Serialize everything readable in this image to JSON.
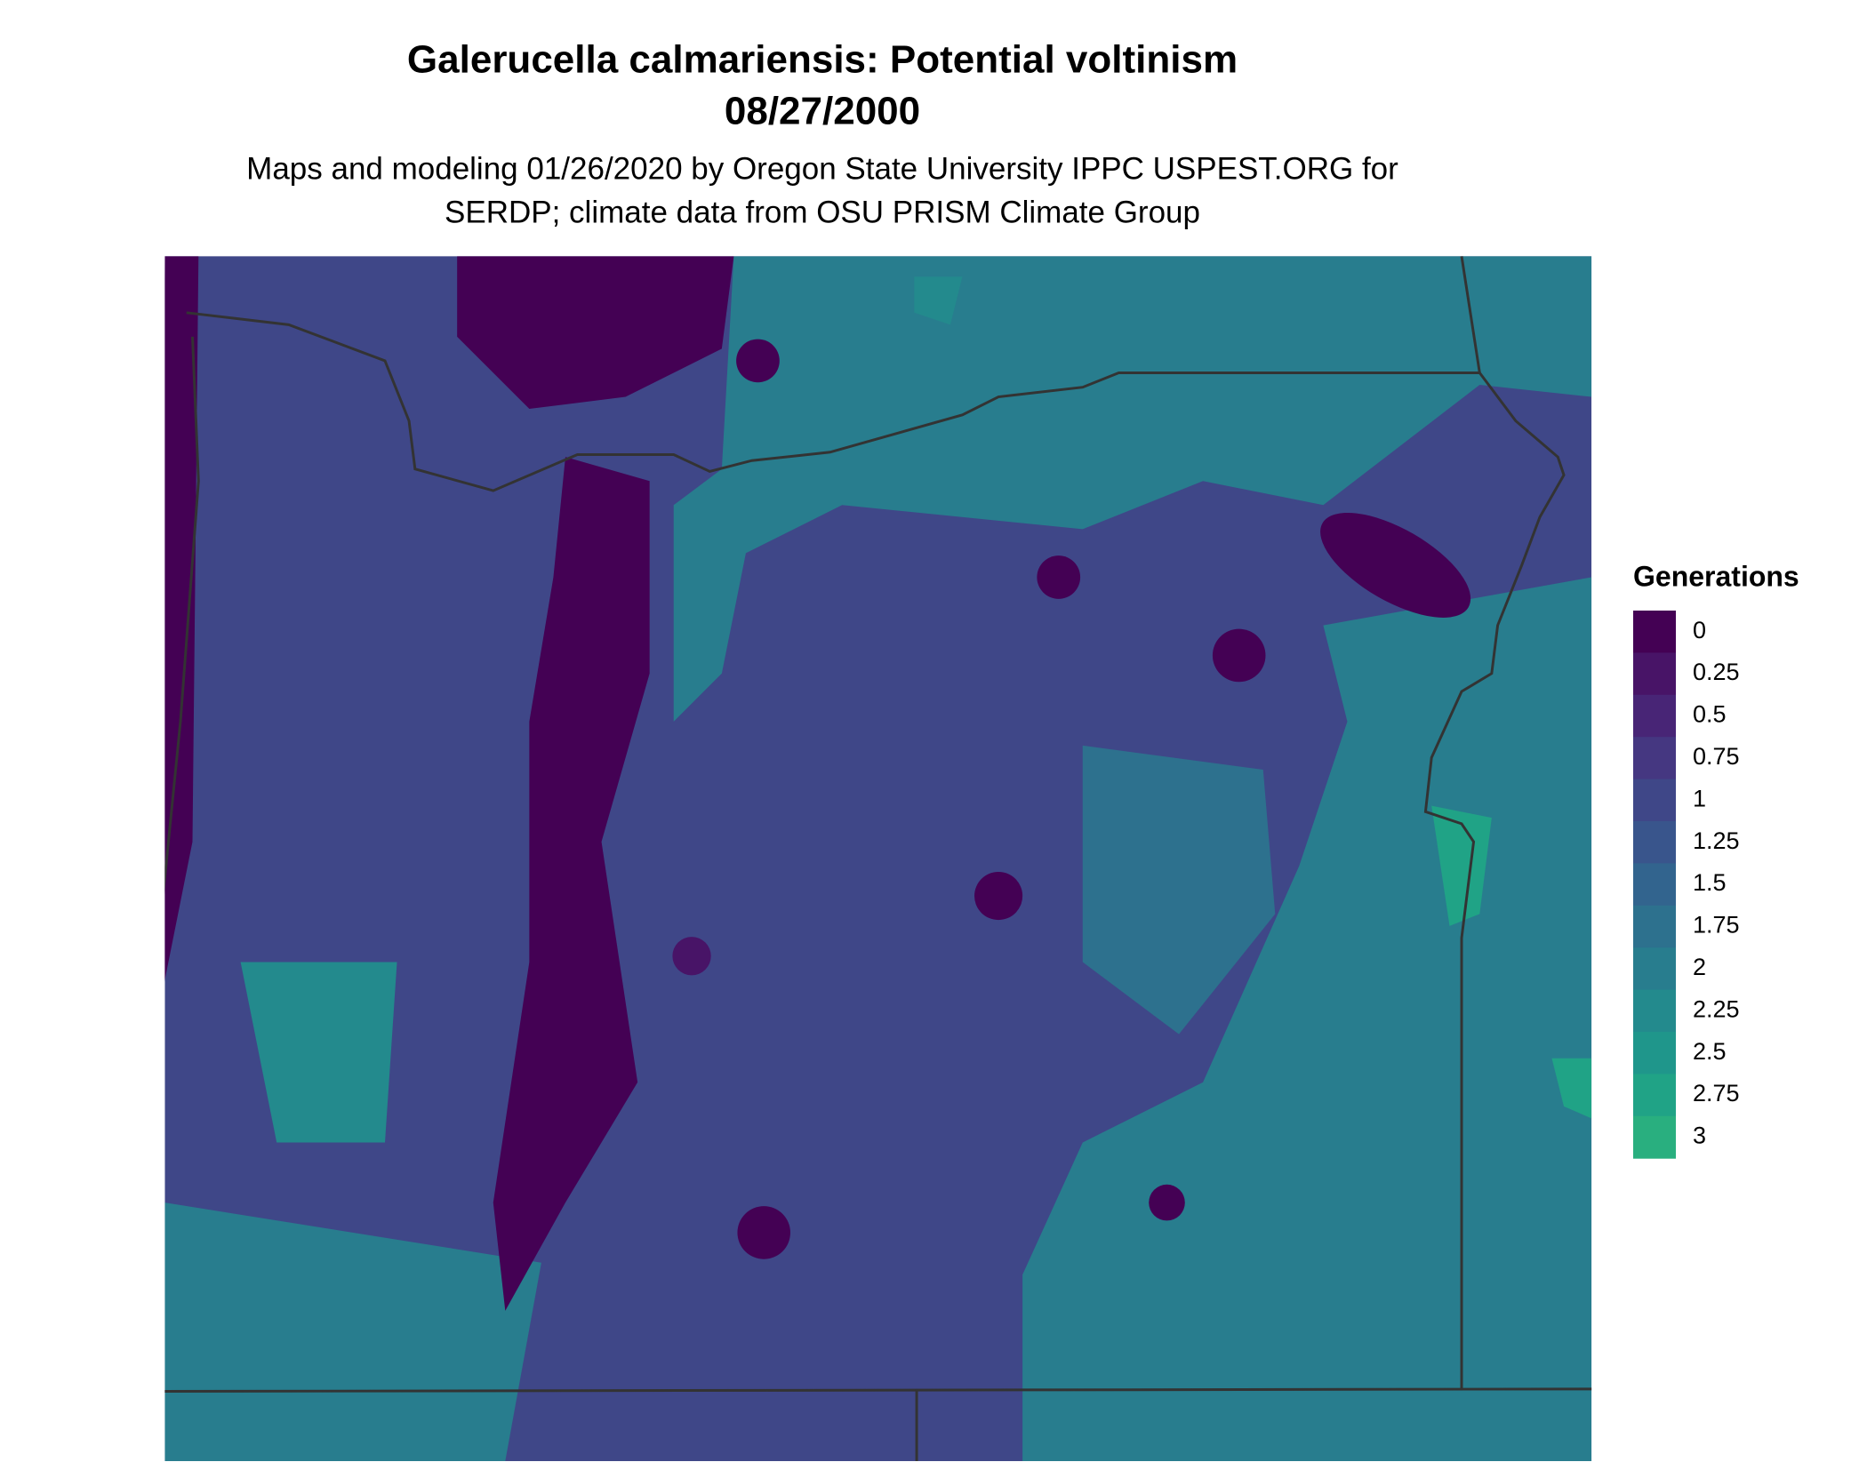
{
  "header": {
    "title": "Galerucella calmariensis: Potential voltinism",
    "date": "08/27/2000",
    "subtitle": [
      "Maps and modeling 01/26/2020 by Oregon State University IPPC USPEST.ORG for",
      "SERDP; climate data from OSU PRISM Climate Group"
    ]
  },
  "legend": {
    "title": "Generations",
    "items": [
      {
        "value": 0,
        "color": "#440154"
      },
      {
        "value": 0.25,
        "color": "#481467"
      },
      {
        "value": 0.5,
        "color": "#482576"
      },
      {
        "value": 0.75,
        "color": "#453781"
      },
      {
        "value": 1,
        "color": "#3f4788"
      },
      {
        "value": 1.25,
        "color": "#39558c"
      },
      {
        "value": 1.5,
        "color": "#32648e"
      },
      {
        "value": 1.75,
        "color": "#2d718e"
      },
      {
        "value": 2,
        "color": "#287d8e"
      },
      {
        "value": 2.25,
        "color": "#238a8d"
      },
      {
        "value": 2.5,
        "color": "#1f968b"
      },
      {
        "value": 2.75,
        "color": "#20a386"
      },
      {
        "value": 3,
        "color": "#29af7f"
      }
    ]
  }
}
